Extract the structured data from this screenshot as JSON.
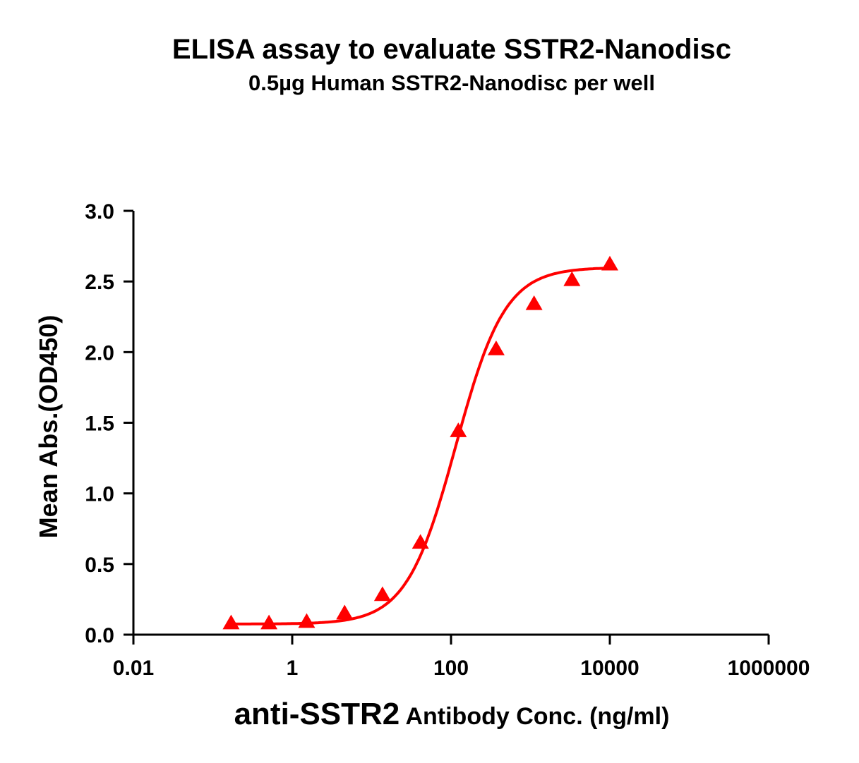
{
  "chart_data": {
    "type": "scatter",
    "title": "ELISA assay to evaluate SSTR2-Nanodisc",
    "subtitle": "0.5µg Human SSTR2-Nanodisc per well",
    "ylabel": "Mean Abs.(OD450)",
    "xlabel_main": "anti-SSTR2",
    "xlabel_rest": " Antibody Conc. (ng/ml)",
    "x_scale": "log",
    "xlim": [
      0.01,
      1000000
    ],
    "ylim": [
      0,
      3.0
    ],
    "x_ticks": [
      "0.01",
      "1",
      "100",
      "10000",
      "1000000"
    ],
    "y_ticks": [
      "0.0",
      "0.5",
      "1.0",
      "1.5",
      "2.0",
      "2.5",
      "3.0"
    ],
    "grid": false,
    "marker": "triangle",
    "color": "#ff0000",
    "series": [
      {
        "x": [
          0.17,
          0.51,
          1.52,
          4.57,
          13.7,
          41.2,
          123.5,
          370,
          1111,
          3333,
          10000
        ],
        "y": [
          0.08,
          0.08,
          0.09,
          0.15,
          0.28,
          0.65,
          1.44,
          2.02,
          2.34,
          2.51,
          2.62
        ],
        "fit": "4PL"
      }
    ]
  }
}
